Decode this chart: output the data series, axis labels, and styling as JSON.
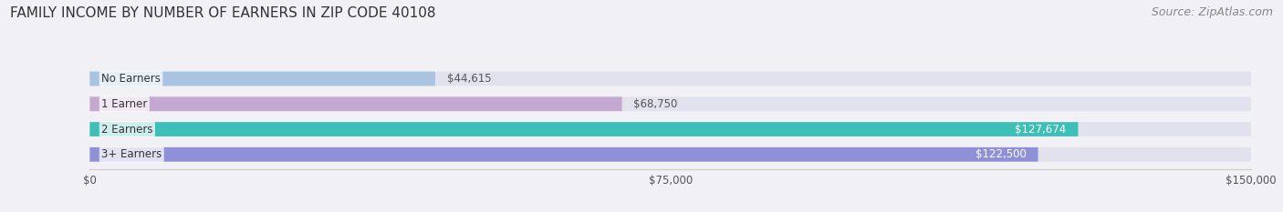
{
  "title": "FAMILY INCOME BY NUMBER OF EARNERS IN ZIP CODE 40108",
  "source": "Source: ZipAtlas.com",
  "categories": [
    "No Earners",
    "1 Earner",
    "2 Earners",
    "3+ Earners"
  ],
  "values": [
    44615,
    68750,
    127674,
    122500
  ],
  "bar_colors": [
    "#a8c4e0",
    "#c4a8d0",
    "#3dbfb8",
    "#9090d8"
  ],
  "bar_labels": [
    "$44,615",
    "$68,750",
    "$127,674",
    "$122,500"
  ],
  "label_colors": [
    "#555555",
    "#555555",
    "#ffffff",
    "#ffffff"
  ],
  "xmax": 150000,
  "xticks": [
    0,
    75000,
    150000
  ],
  "xticklabels": [
    "$0",
    "$75,000",
    "$150,000"
  ],
  "background_color": "#f0f0f5",
  "bar_bg_color": "#e2e2ee",
  "title_fontsize": 11,
  "source_fontsize": 9
}
